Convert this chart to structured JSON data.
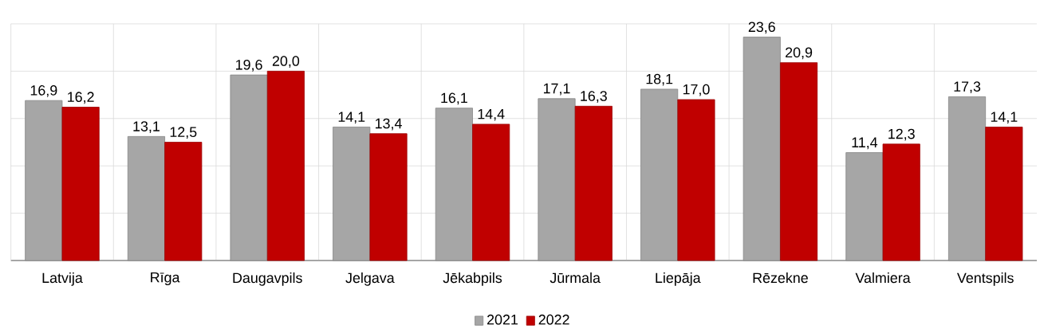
{
  "chart_data": {
    "type": "bar",
    "categories": [
      "Latvija",
      "Rīga",
      "Daugavpils",
      "Jelgava",
      "Jēkabpils",
      "Jūrmala",
      "Liepāja",
      "Rēzekne",
      "Valmiera",
      "Ventspils"
    ],
    "series": [
      {
        "name": "2021",
        "color": "#a6a6a6",
        "values": [
          16.9,
          13.1,
          19.6,
          14.1,
          16.1,
          17.1,
          18.1,
          23.6,
          11.4,
          17.3
        ],
        "value_labels": [
          "16,9",
          "13,1",
          "19,6",
          "14,1",
          "16,1",
          "17,1",
          "18,1",
          "23,6",
          "11,4",
          "17,3"
        ]
      },
      {
        "name": "2022",
        "color": "#c00000",
        "values": [
          16.2,
          12.5,
          20.0,
          13.4,
          14.4,
          16.3,
          17.0,
          20.9,
          12.3,
          14.1
        ],
        "value_labels": [
          "16,2",
          "12,5",
          "20,0",
          "13,4",
          "14,4",
          "16,3",
          "17,0",
          "20,9",
          "12,3",
          "14,1"
        ]
      }
    ],
    "ylim": [
      0,
      25
    ],
    "yticks": [
      {
        "value": 0,
        "label": null
      },
      {
        "value": 5,
        "label": null
      },
      {
        "value": 10,
        "label": null
      },
      {
        "value": 15,
        "label": null
      },
      {
        "value": 20,
        "label": null
      },
      {
        "value": 25,
        "label": null
      }
    ],
    "tick_labels": "x",
    "grid": true,
    "legend": "bottom"
  }
}
